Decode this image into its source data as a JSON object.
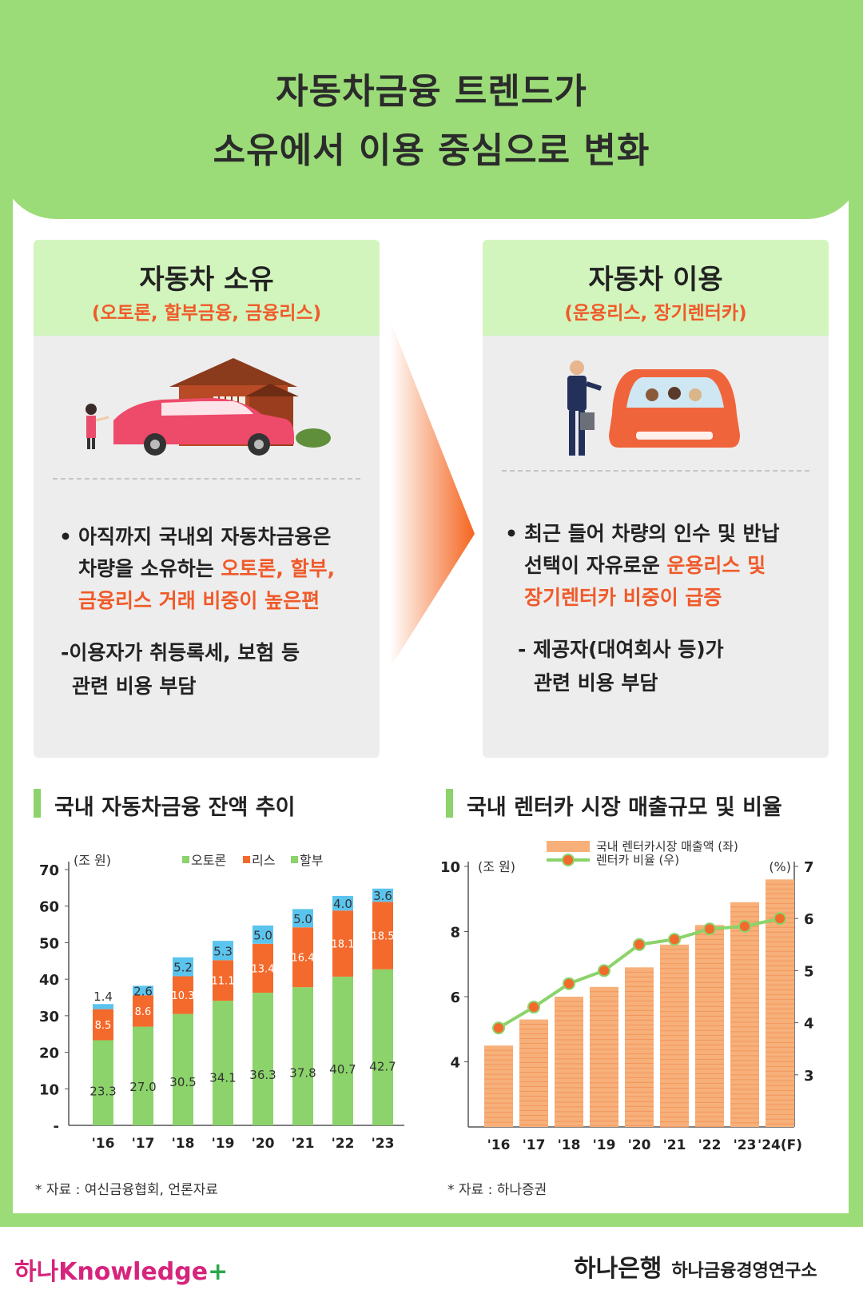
{
  "header": {
    "title_line1": "자동차금융 트렌드가",
    "title_line2": "소유에서 이용 중심으로 변화"
  },
  "ownership": {
    "title": "자동차 소유",
    "subtitle": "(오토론, 할부금융, 금융리스)",
    "bullet_lines": [
      {
        "plain": "아직까지 국내외 자동차금융은",
        "accent": ""
      },
      {
        "plain": "차량을 소유하는 ",
        "accent": "오토론, 할부,"
      },
      {
        "plain": "",
        "accent": "금융리스 거래 비중이 높은편"
      }
    ],
    "note_lines": [
      "-이용자가 취등록세, 보험 등",
      "관련 비용 부담"
    ]
  },
  "usage": {
    "title": "자동차 이용",
    "subtitle": "(운용리스, 장기렌터카)",
    "bullet_lines": [
      {
        "plain": "최근 들어 차량의 인수 및 반납",
        "accent": ""
      },
      {
        "plain": "선택이 자유로운 ",
        "accent": "운용리스 및"
      },
      {
        "plain": "",
        "accent": "장기렌터카 비중이 급증"
      }
    ],
    "note_lines": [
      "- 제공자(대여회사 등)가",
      "관련 비용 부담"
    ]
  },
  "bullet_symbol": "•",
  "colors": {
    "auto_loan": "#8bd36a",
    "lease": "#f46a2c",
    "installment": "#5bc4ee",
    "rental_bar": "#f7b07a",
    "rental_line": "#8bd36a",
    "rental_dot": "#f26a2c",
    "accent": "#f05a2a"
  },
  "chart_data": [
    {
      "type": "bar",
      "stacked": true,
      "title": "국내 자동차금융 잔액 추이",
      "unit_label": "(조 원)",
      "categories": [
        "'16",
        "'17",
        "'18",
        "'19",
        "'20",
        "'21",
        "'22",
        "'23"
      ],
      "series": [
        {
          "name": "오토론",
          "values": [
            23.3,
            27.0,
            30.5,
            34.1,
            36.3,
            37.8,
            40.7,
            42.7
          ]
        },
        {
          "name": "리스",
          "values": [
            8.5,
            8.6,
            10.3,
            11.1,
            13.4,
            16.4,
            18.1,
            18.5
          ]
        },
        {
          "name": "할부",
          "values": [
            1.4,
            2.6,
            5.2,
            5.3,
            5.0,
            5.0,
            4.0,
            3.6
          ]
        }
      ],
      "y_ticks": [
        "70",
        "60",
        "50",
        "40",
        "30",
        "20",
        "10",
        "-"
      ],
      "ylim": [
        0,
        70
      ],
      "source": "* 자료 : 여신금융협회, 언론자료"
    },
    {
      "type": "bar+line",
      "title": "국내 렌터카 시장 매출규모 및 비율",
      "unit_left": "(조 원)",
      "unit_right": "(%)",
      "categories": [
        "'16",
        "'17",
        "'18",
        "'19",
        "'20",
        "'21",
        "'22",
        "'23",
        "'24(F)"
      ],
      "series": [
        {
          "name": "국내 렌터카시장 매출액 (좌)",
          "axis": "left",
          "values": [
            4.5,
            5.3,
            6.0,
            6.3,
            6.9,
            7.6,
            8.2,
            8.9,
            9.6
          ]
        },
        {
          "name": "렌터카 비율 (우)",
          "axis": "right",
          "values": [
            3.9,
            4.3,
            4.75,
            5.0,
            5.5,
            5.6,
            5.8,
            5.85,
            6.0
          ]
        }
      ],
      "y_left_ticks": [
        "10",
        "8",
        "6",
        "4"
      ],
      "y_right_ticks": [
        "7",
        "6",
        "5",
        "4",
        "3"
      ],
      "ylim_left": [
        2,
        10
      ],
      "ylim_right": [
        2,
        7
      ],
      "source": "* 자료 : 하나증권"
    }
  ],
  "footer": {
    "left_brand": "하나Knowledge",
    "left_plus": "+",
    "right_bank": "하나은행",
    "right_institute": "하나금융경영연구소"
  }
}
